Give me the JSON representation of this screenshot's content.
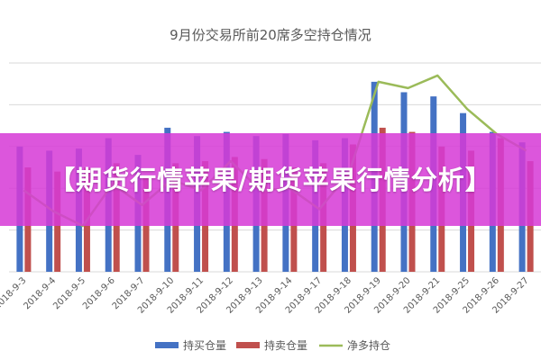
{
  "banner": {
    "text": "【期货行情苹果/期货苹果行情分析】"
  },
  "colors": {
    "long": "#4472C4",
    "short": "#C0504D",
    "net": "#9BBB59",
    "grid": "#D9D9D9",
    "banner": "#D63AD6"
  },
  "chart_data": {
    "type": "bar",
    "title": "9月份交易所前20席多空持仓情况",
    "categories": [
      "2018-9-3",
      "2018-9-4",
      "2018-9-5",
      "2018-9-6",
      "2018-9-7",
      "2018-9-10",
      "2018-9-11",
      "2018-9-12",
      "2018-9-13",
      "2018-9-14",
      "2018-9-17",
      "2018-9-18",
      "2018-9-19",
      "2018-9-20",
      "2018-9-21",
      "2018-9-25",
      "2018-9-26",
      "2018-9-27"
    ],
    "ylim": [
      0,
      10
    ],
    "grid": true,
    "legend_position": "bottom",
    "series": [
      {
        "name": "持买仓量",
        "type": "bar",
        "values": [
          6.0,
          5.8,
          5.9,
          6.4,
          5.6,
          6.9,
          6.5,
          6.7,
          6.5,
          6.6,
          6.3,
          6.4,
          9.1,
          8.6,
          8.4,
          7.6,
          6.7,
          6.2
        ]
      },
      {
        "name": "持卖仓量",
        "type": "bar",
        "values": [
          5.0,
          4.8,
          5.0,
          5.2,
          4.5,
          5.2,
          5.3,
          5.5,
          5.4,
          5.0,
          5.2,
          6.1,
          6.9,
          6.7,
          6.0,
          5.8,
          6.4,
          5.3
        ]
      },
      {
        "name": "净多持仓",
        "type": "line",
        "values": [
          3.9,
          2.9,
          2.2,
          4.2,
          3.2,
          4.4,
          3.9,
          5.3,
          3.9,
          4.0,
          3.0,
          4.7,
          9.1,
          8.8,
          9.4,
          7.8,
          6.6,
          5.8
        ]
      }
    ]
  }
}
